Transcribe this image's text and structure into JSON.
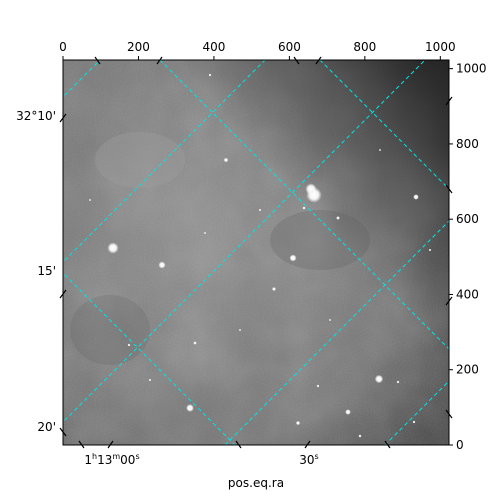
{
  "figure": {
    "xlabel": "pos.eq.ra",
    "ylabel": ""
  },
  "pixel_axes": {
    "top_ticks": [
      "0",
      "200",
      "400",
      "600",
      "800",
      "1000"
    ],
    "top_values": [
      0,
      200,
      400,
      600,
      800,
      1000
    ],
    "right_ticks": [
      "0",
      "200",
      "400",
      "600",
      "800",
      "1000"
    ],
    "right_values": [
      0,
      200,
      400,
      600,
      800,
      1000
    ],
    "xlim": [
      0,
      1023
    ],
    "ylim": [
      0,
      1023
    ]
  },
  "world_axes": {
    "ra_ticks": [
      "1h13m00s",
      "30s"
    ],
    "ra_main": [
      "1",
      "13",
      "00"
    ],
    "ra_units": [
      "h",
      "m",
      "s"
    ],
    "ra_second": [
      "30",
      "s"
    ],
    "dec_ticks": [
      "32°10'",
      "15'",
      "20'"
    ],
    "grid_color": "#00e5e5"
  },
  "image": {
    "colormap": "gray",
    "background": "#808080"
  }
}
